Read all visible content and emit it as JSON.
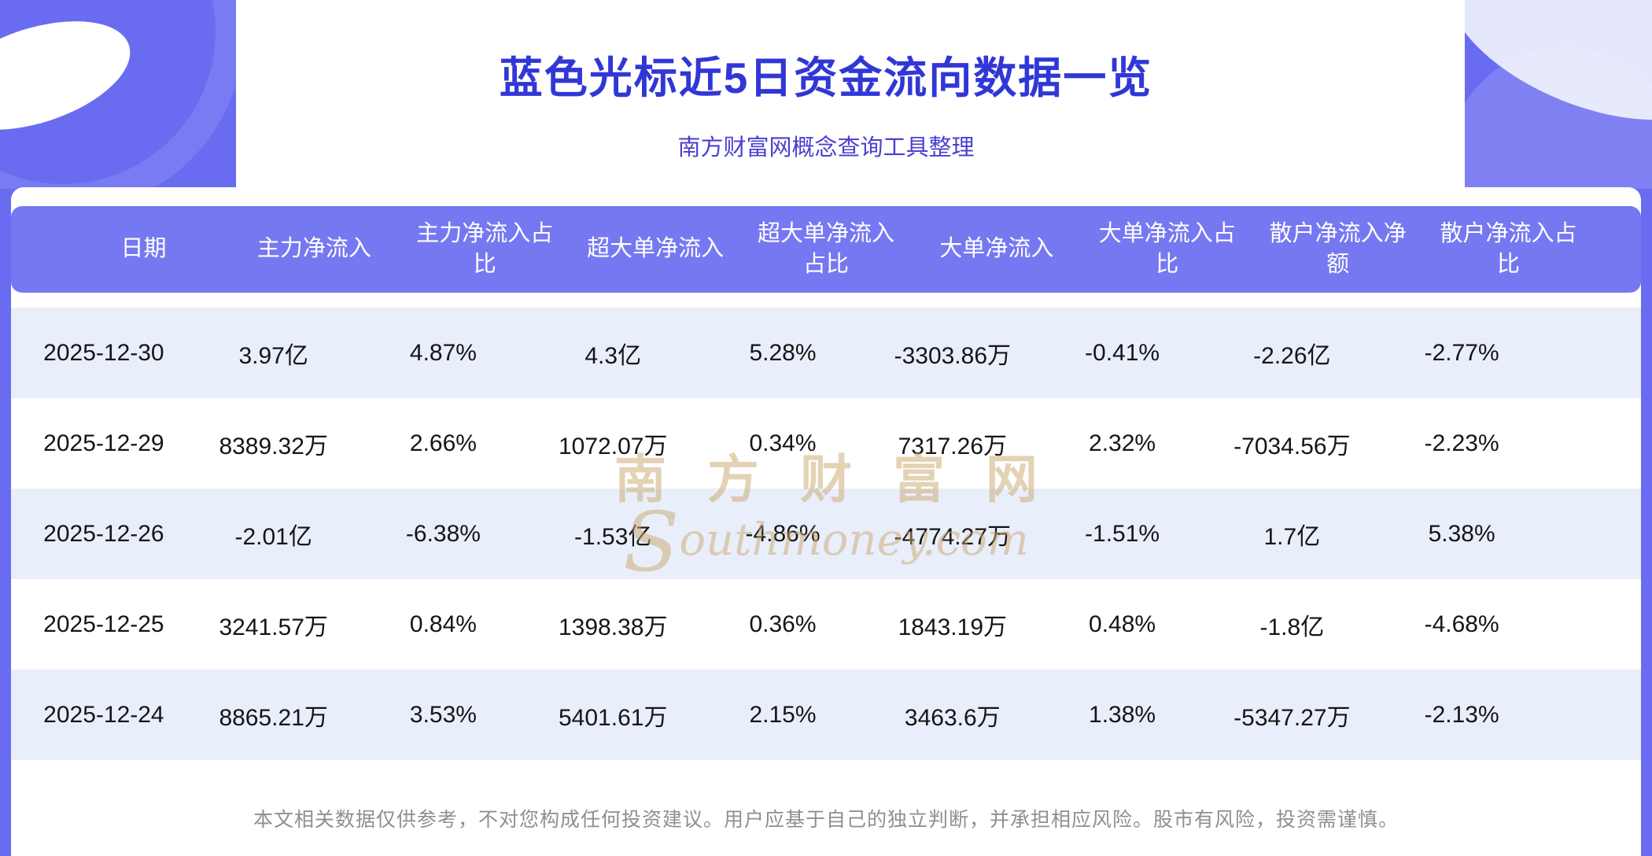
{
  "page": {
    "title": "蓝色光标近5日资金流向数据一览",
    "subtitle": "南方财富网概念查询工具整理",
    "footer": "本文相关数据仅供参考，不对您构成任何投资建议。用户应基于自己的独立判断，并承担相应风险。股市有风险，投资需谨慎。"
  },
  "watermark": {
    "cn": "南方财富网",
    "en_initial": "S",
    "en_rest": "outhmoney.com"
  },
  "colors": {
    "banner_bg": "#696cf1",
    "table_header_bg": "#7678f1",
    "row_alt_bg": "#e9eefb",
    "title_text": "#3137d6",
    "subtitle_text": "#4b40cf",
    "footer_text": "#8f8f92",
    "watermark_text": "#c9a66b"
  },
  "chart_data": {
    "type": "table",
    "title": "蓝色光标近5日资金流向数据一览",
    "subtitle": "南方财富网概念查询工具整理",
    "columns": [
      "日期",
      "主力净流入",
      "主力净流入占比",
      "超大单净流入",
      "超大单净流入占比",
      "大单净流入",
      "大单净流入占比",
      "散户净流入净额",
      "散户净流入占比"
    ],
    "rows": [
      [
        "2025-12-30",
        "3.97亿",
        "4.87%",
        "4.3亿",
        "5.28%",
        "-3303.86万",
        "-0.41%",
        "-2.26亿",
        "-2.77%"
      ],
      [
        "2025-12-29",
        "8389.32万",
        "2.66%",
        "1072.07万",
        "0.34%",
        "7317.26万",
        "2.32%",
        "-7034.56万",
        "-2.23%"
      ],
      [
        "2025-12-26",
        "-2.01亿",
        "-6.38%",
        "-1.53亿",
        "-4.86%",
        "-4774.27万",
        "-1.51%",
        "1.7亿",
        "5.38%"
      ],
      [
        "2025-12-25",
        "3241.57万",
        "0.84%",
        "1398.38万",
        "0.36%",
        "1843.19万",
        "0.48%",
        "-1.8亿",
        "-4.68%"
      ],
      [
        "2025-12-24",
        "8865.21万",
        "3.53%",
        "5401.61万",
        "2.15%",
        "3463.6万",
        "1.38%",
        "-5347.27万",
        "-2.13%"
      ]
    ],
    "layout": {
      "header_row": true,
      "alternating_rows": true,
      "legend": "none",
      "grid": "off"
    }
  }
}
